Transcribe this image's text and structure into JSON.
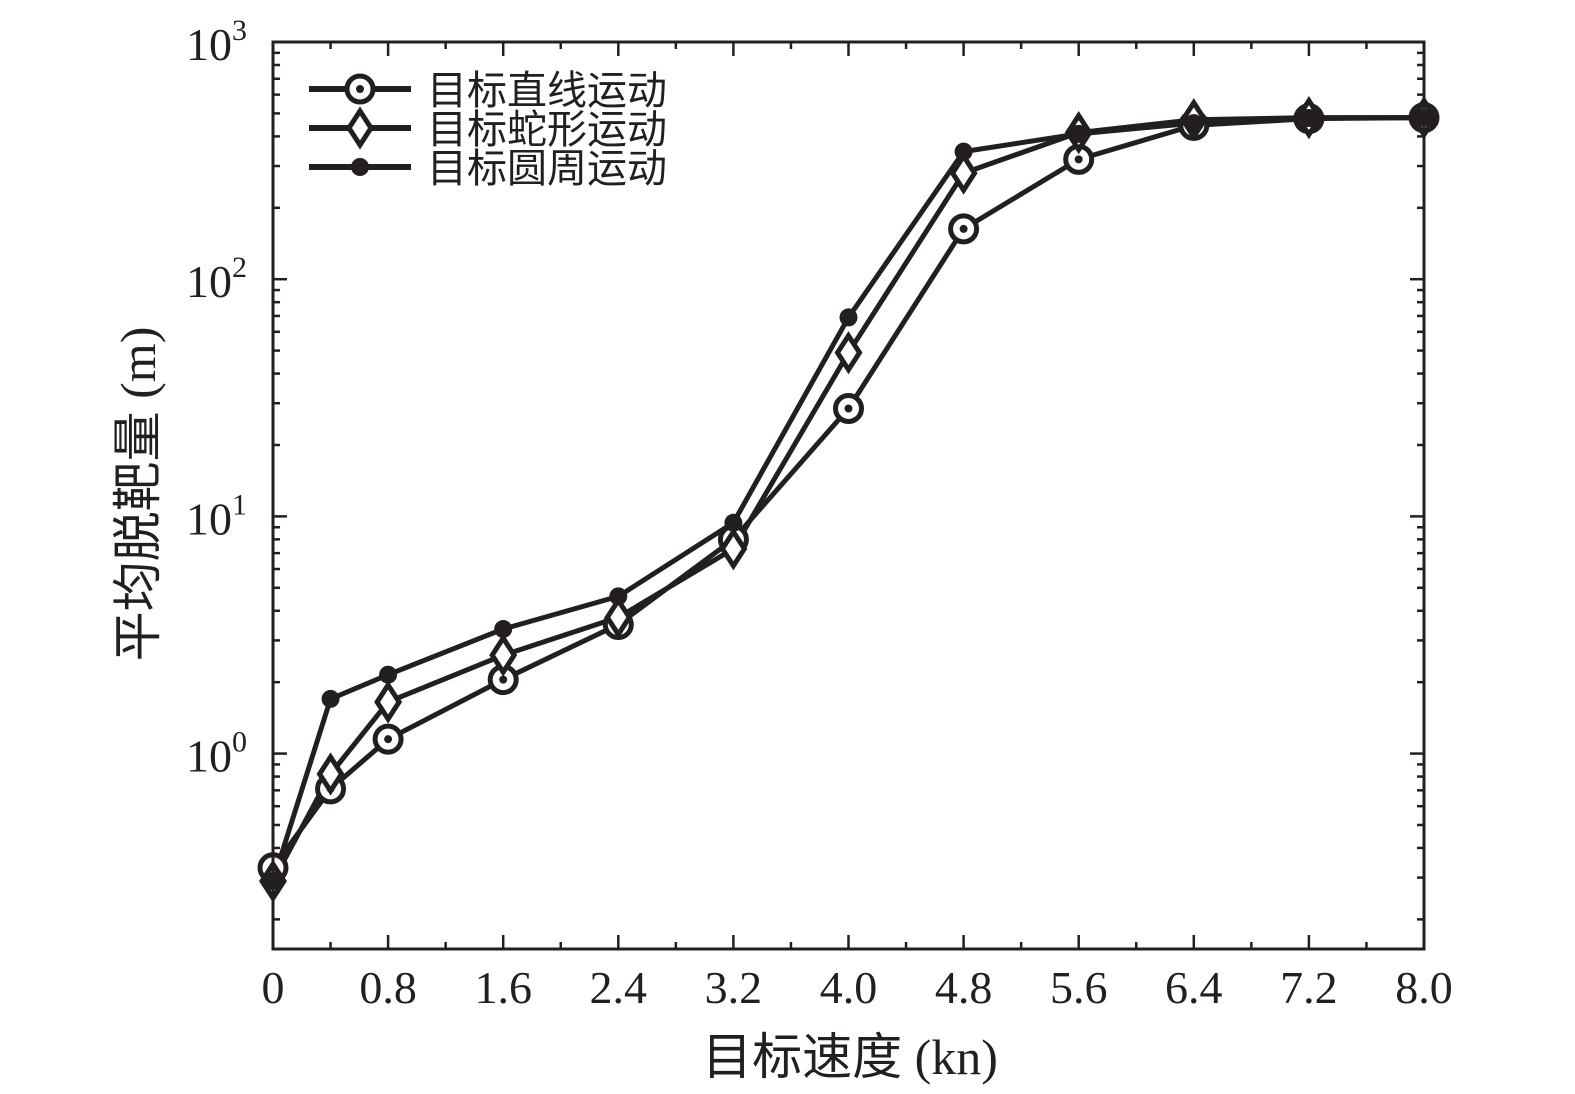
{
  "chart_data": {
    "type": "line",
    "x_scale": "linear",
    "y_scale": "log",
    "xlabel": "目标速度 (kn)",
    "ylabel": "平均脱靶量 (m)",
    "xlim": [
      0,
      8.0
    ],
    "ylim": [
      0.15,
      1000
    ],
    "x_ticks": [
      {
        "value": 0,
        "label": "0"
      },
      {
        "value": 0.8,
        "label": "0.8"
      },
      {
        "value": 1.6,
        "label": "1.6"
      },
      {
        "value": 2.4,
        "label": "2.4"
      },
      {
        "value": 3.2,
        "label": "3.2"
      },
      {
        "value": 4.0,
        "label": "4.0"
      },
      {
        "value": 4.8,
        "label": "4.8"
      },
      {
        "value": 5.6,
        "label": "5.6"
      },
      {
        "value": 6.4,
        "label": "6.4"
      },
      {
        "value": 7.2,
        "label": "7.2"
      },
      {
        "value": 8.0,
        "label": "8.0"
      }
    ],
    "y_ticks": [
      {
        "value": 1,
        "base": "10",
        "exp": "0"
      },
      {
        "value": 10,
        "base": "10",
        "exp": "1"
      },
      {
        "value": 100,
        "base": "10",
        "exp": "2"
      },
      {
        "value": 1000,
        "base": "10",
        "exp": "3"
      }
    ],
    "legend_position": "top-left",
    "grid": false,
    "color": "#231f20",
    "series": [
      {
        "name": "目标直线运动",
        "marker": "open-circle",
        "x": [
          0,
          0.4,
          0.8,
          1.6,
          2.4,
          3.2,
          4.0,
          4.8,
          5.6,
          6.4,
          7.2,
          8.0
        ],
        "y": [
          0.33,
          0.71,
          1.15,
          2.05,
          3.5,
          8.0,
          28.5,
          163,
          320,
          445,
          475,
          480
        ]
      },
      {
        "name": "目标蛇形运动",
        "marker": "diamond",
        "x": [
          0,
          0.4,
          0.8,
          1.6,
          2.4,
          3.2,
          4.0,
          4.8,
          5.6,
          6.4,
          7.2,
          8.0
        ],
        "y": [
          0.29,
          0.82,
          1.65,
          2.6,
          3.75,
          7.3,
          49,
          280,
          415,
          470,
          480,
          480
        ]
      },
      {
        "name": "目标圆周运动",
        "marker": "filled-circle",
        "x": [
          0,
          0.4,
          0.8,
          1.6,
          2.4,
          3.2,
          4.0,
          4.8,
          5.6,
          6.4,
          7.2,
          8.0
        ],
        "y": [
          0.29,
          1.7,
          2.15,
          3.35,
          4.6,
          9.4,
          69,
          345,
          410,
          455,
          478,
          480
        ]
      }
    ]
  }
}
